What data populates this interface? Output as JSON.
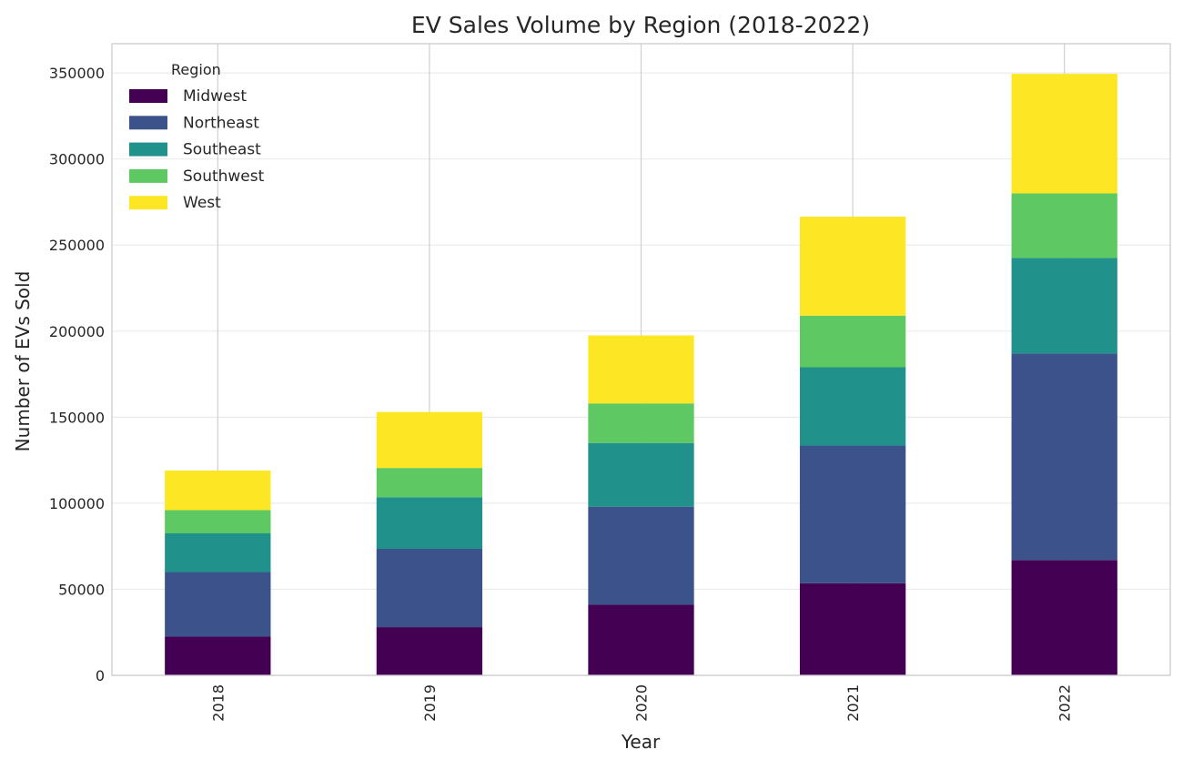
{
  "chart_data": {
    "type": "bar",
    "stacked": true,
    "title": "EV Sales Volume by Region (2018-2022)",
    "xlabel": "Year",
    "ylabel": "Number of EVs Sold",
    "categories": [
      "2018",
      "2019",
      "2020",
      "2021",
      "2022"
    ],
    "ylim": [
      0,
      367000
    ],
    "yticks": [
      0,
      50000,
      100000,
      150000,
      200000,
      250000,
      300000,
      350000
    ],
    "ytick_labels": [
      "0",
      "50000",
      "100000",
      "150000",
      "200000",
      "250000",
      "300000",
      "350000"
    ],
    "grid": true,
    "legend": {
      "title": "Region",
      "placement": "top-left"
    },
    "series": [
      {
        "name": "Midwest",
        "color": "#440154",
        "values": [
          22500,
          28000,
          41000,
          53500,
          67000
        ]
      },
      {
        "name": "Northeast",
        "color": "#3b528b",
        "values": [
          37500,
          45500,
          57000,
          80000,
          120000
        ]
      },
      {
        "name": "Southeast",
        "color": "#21918c",
        "values": [
          22500,
          30000,
          37000,
          45500,
          55500
        ]
      },
      {
        "name": "Southwest",
        "color": "#5ec962",
        "values": [
          13500,
          17000,
          23000,
          30000,
          37500
        ]
      },
      {
        "name": "West",
        "color": "#fde725",
        "values": [
          23000,
          32500,
          39500,
          57500,
          69500
        ]
      }
    ]
  }
}
